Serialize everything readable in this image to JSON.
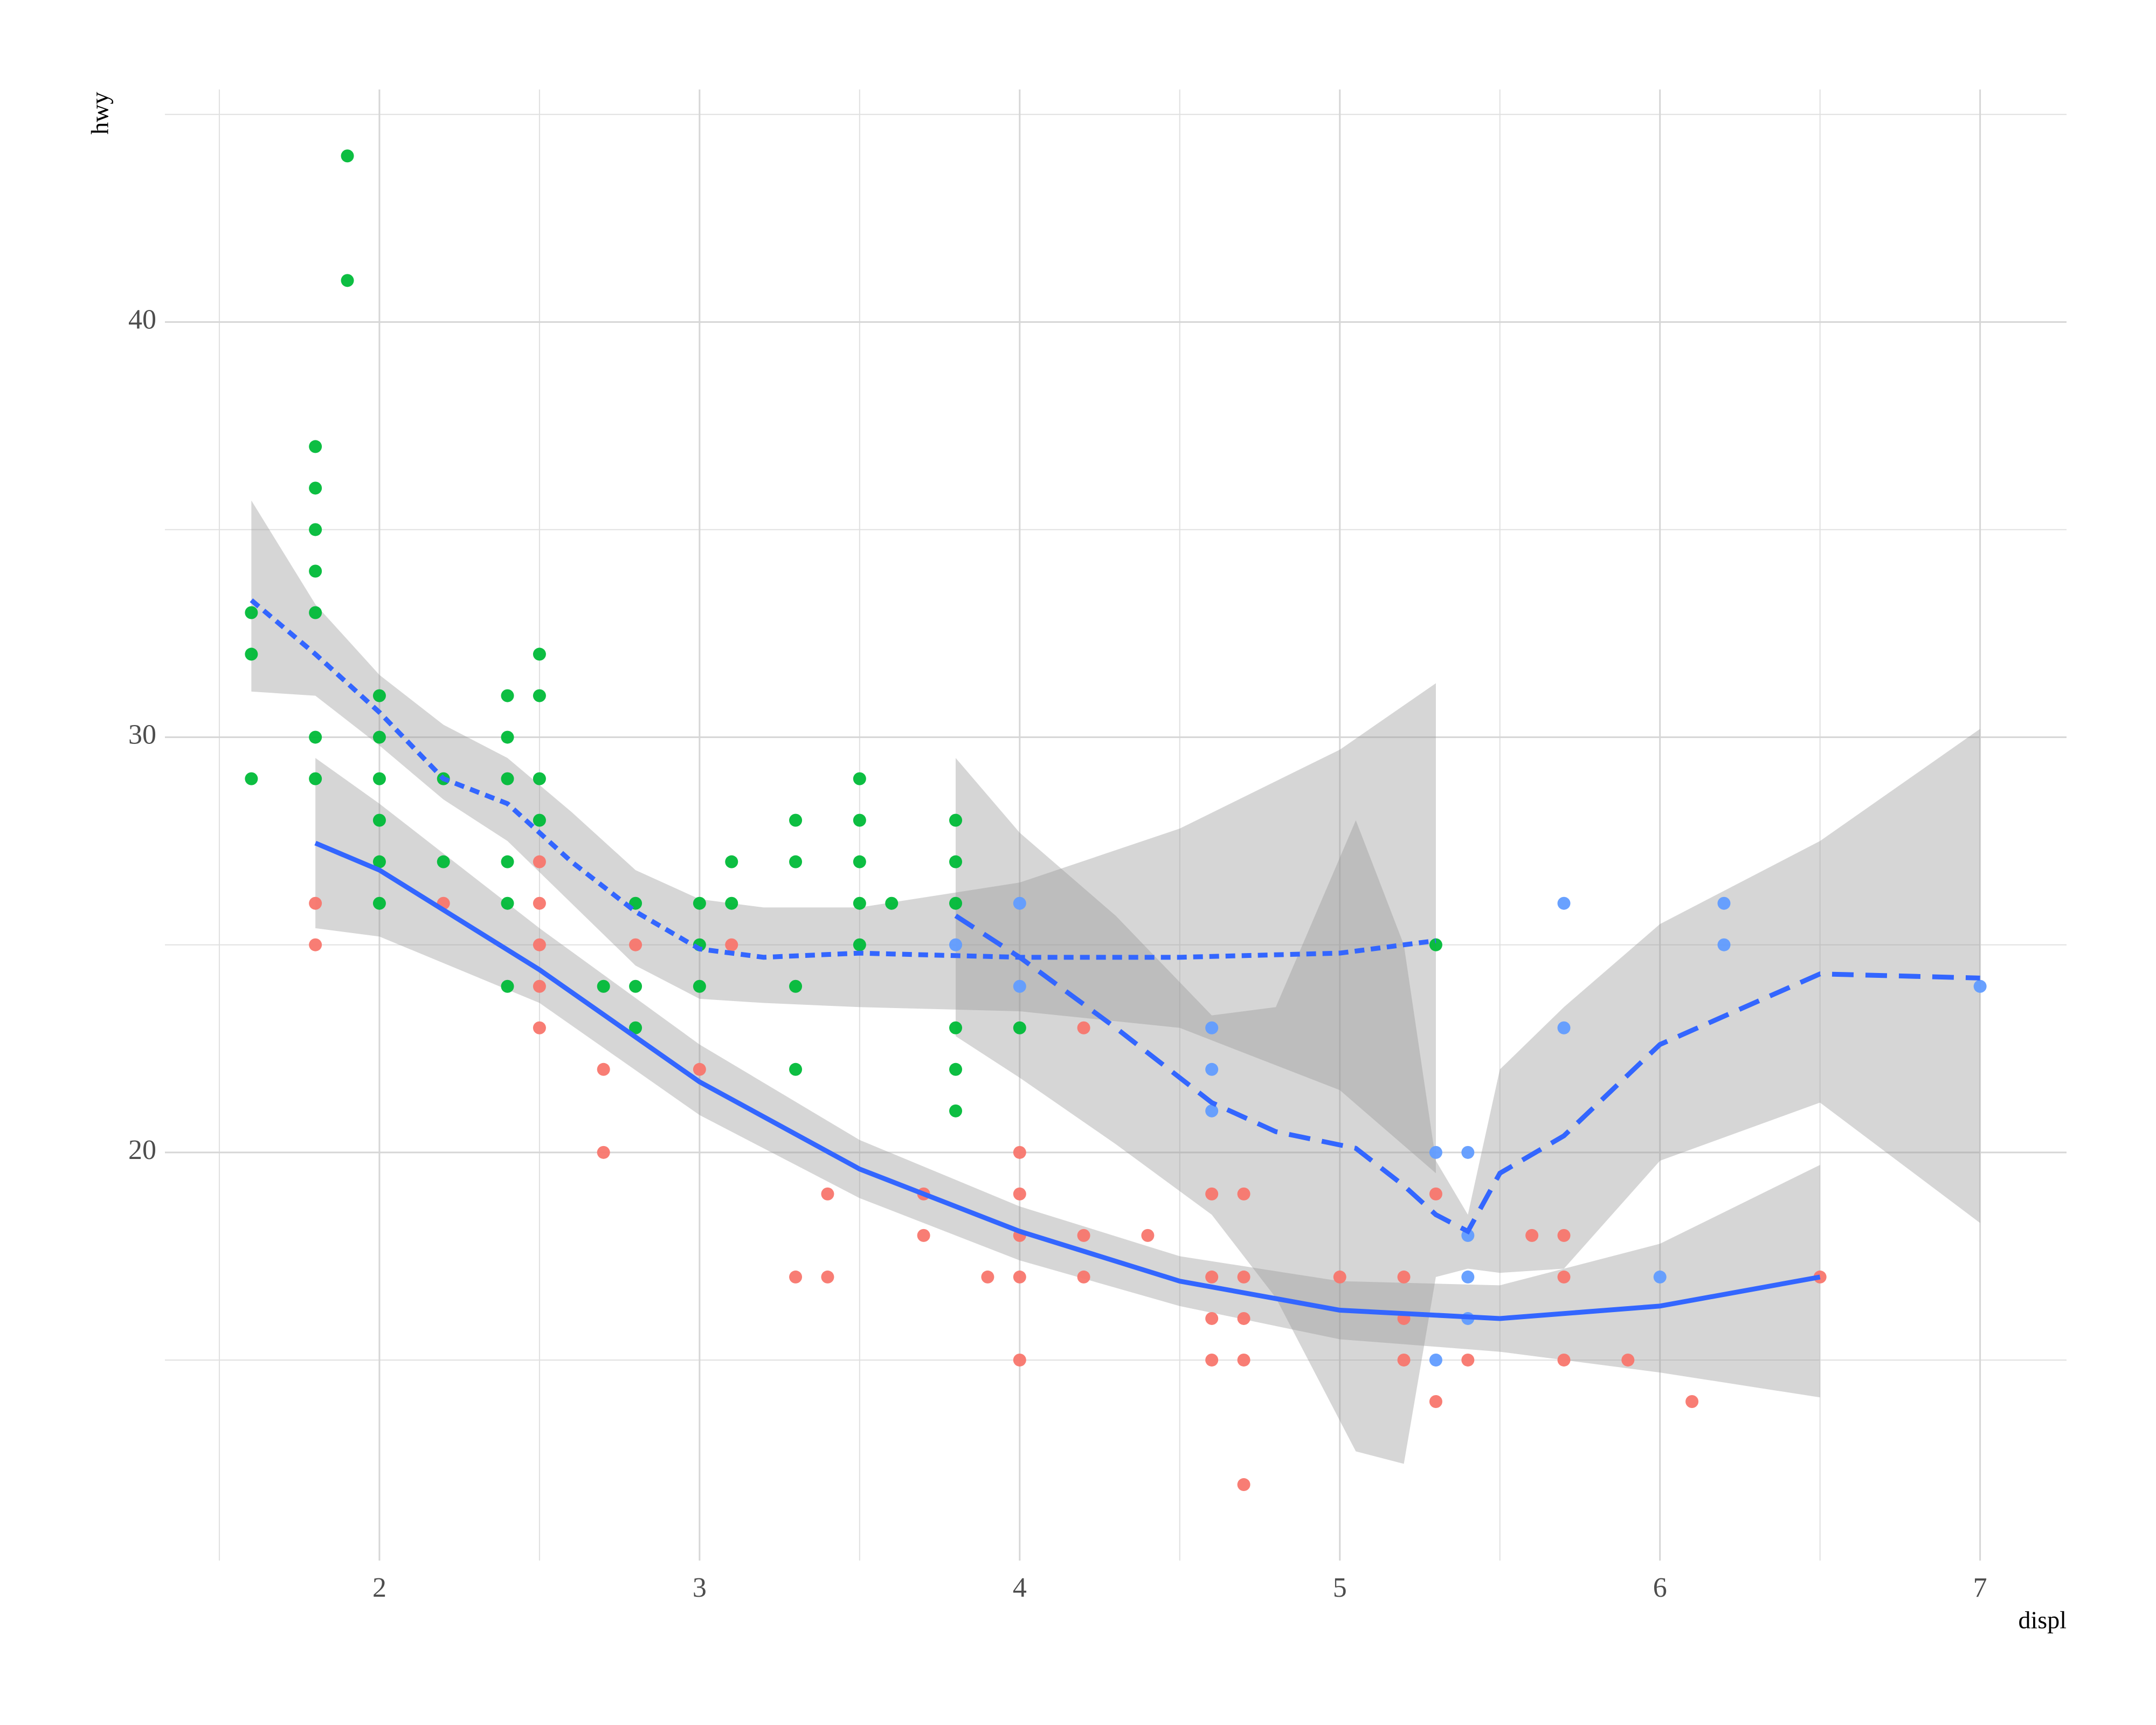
{
  "chart_data": {
    "type": "scatter",
    "x_label": "displ",
    "y_label": "hwy",
    "xlim": [
      1.33,
      7.27
    ],
    "ylim": [
      10.17,
      45.6
    ],
    "xticks": [
      2,
      3,
      4,
      5,
      6,
      7
    ],
    "yticks": [
      20,
      30,
      40
    ],
    "x_minor_grid": [
      1.5,
      2.5,
      3.5,
      4.5,
      5.5,
      6.5
    ],
    "y_minor_grid": [
      15,
      25,
      35,
      45
    ],
    "grid": true,
    "smooth_color": "#3366FF",
    "band_color": "#999999",
    "series": [
      {
        "color": "#F8766D",
        "x": [
          1.8,
          1.8,
          2.2,
          2.5,
          2.5,
          2.5,
          2.5,
          2.5,
          2.7,
          2.7,
          2.8,
          3.0,
          3.1,
          3.3,
          3.4,
          3.4,
          3.7,
          3.7,
          3.9,
          4.0,
          4.0,
          4.0,
          4.0,
          4.0,
          4.2,
          4.2,
          4.2,
          4.4,
          4.6,
          4.6,
          4.6,
          4.6,
          4.7,
          4.7,
          4.7,
          4.7,
          4.7,
          5.0,
          5.2,
          5.2,
          5.2,
          5.3,
          5.3,
          5.4,
          5.6,
          5.7,
          5.7,
          5.7,
          5.9,
          6.1,
          6.5
        ],
        "values": [
          26,
          25,
          26,
          27,
          26,
          25,
          24,
          23,
          22,
          20,
          25,
          22,
          25,
          17,
          19,
          17,
          19,
          18,
          17,
          20,
          19,
          18,
          17,
          15,
          23,
          18,
          17,
          18,
          19,
          17,
          16,
          15,
          19,
          17,
          16,
          15,
          12,
          17,
          17,
          16,
          15,
          19,
          14,
          15,
          18,
          18,
          17,
          15,
          15,
          14,
          17
        ],
        "smooth": {
          "linetype": "solid",
          "x": [
            1.8,
            2.0,
            2.5,
            3.0,
            3.5,
            4.0,
            4.5,
            5.0,
            5.5,
            6.0,
            6.5
          ],
          "values": [
            27.45,
            26.8,
            24.4,
            21.7,
            19.6,
            18.1,
            16.9,
            16.2,
            16.0,
            16.3,
            17.0
          ],
          "lower": [
            25.4,
            25.2,
            23.6,
            20.9,
            18.9,
            17.4,
            16.3,
            15.5,
            15.2,
            14.7,
            14.1
          ],
          "upper": [
            29.5,
            28.4,
            25.4,
            22.6,
            20.3,
            18.7,
            17.5,
            16.9,
            16.8,
            17.8,
            19.7
          ]
        }
      },
      {
        "color": "#00BA38",
        "x": [
          1.6,
          1.6,
          1.6,
          1.8,
          1.8,
          1.8,
          1.8,
          1.8,
          1.8,
          1.8,
          1.9,
          1.9,
          2.0,
          2.0,
          2.0,
          2.0,
          2.0,
          2.0,
          2.2,
          2.2,
          2.4,
          2.4,
          2.4,
          2.4,
          2.4,
          2.4,
          2.5,
          2.5,
          2.5,
          2.5,
          2.7,
          2.8,
          2.8,
          2.8,
          3.0,
          3.0,
          3.0,
          3.1,
          3.1,
          3.3,
          3.3,
          3.3,
          3.3,
          3.5,
          3.5,
          3.5,
          3.5,
          3.5,
          3.6,
          3.8,
          3.8,
          3.8,
          3.8,
          3.8,
          3.8,
          4.0,
          5.3
        ],
        "values": [
          33,
          32,
          29,
          37,
          36,
          35,
          34,
          33,
          30,
          29,
          44,
          41,
          31,
          30,
          29,
          28,
          27,
          26,
          29,
          27,
          31,
          30,
          29,
          27,
          26,
          24,
          32,
          31,
          29,
          28,
          24,
          26,
          24,
          23,
          26,
          25,
          24,
          27,
          26,
          28,
          27,
          24,
          22,
          29,
          28,
          27,
          26,
          25,
          26,
          28,
          27,
          26,
          23,
          22,
          21,
          23,
          25
        ],
        "smooth": {
          "linetype": "dotted",
          "x": [
            1.6,
            1.8,
            2.0,
            2.2,
            2.4,
            2.6,
            2.8,
            3.0,
            3.2,
            3.5,
            4.0,
            4.5,
            5.0,
            5.3
          ],
          "values": [
            33.3,
            32.0,
            30.6,
            29.0,
            28.4,
            27.0,
            25.8,
            24.9,
            24.7,
            24.8,
            24.7,
            24.7,
            24.8,
            25.1
          ],
          "lower": [
            31.1,
            31.0,
            29.8,
            28.5,
            27.5,
            26.0,
            24.5,
            23.7,
            23.6,
            23.5,
            23.4,
            23.0,
            21.5,
            19.5
          ],
          "upper": [
            35.7,
            33.2,
            31.5,
            30.3,
            29.5,
            28.2,
            26.8,
            26.1,
            25.9,
            25.9,
            26.5,
            27.8,
            29.7,
            31.3
          ]
        }
      },
      {
        "color": "#619CFF",
        "x": [
          3.8,
          4.0,
          4.0,
          4.6,
          4.6,
          4.6,
          5.3,
          5.3,
          5.4,
          5.4,
          5.4,
          5.4,
          5.7,
          5.7,
          6.0,
          6.2,
          6.2,
          7.0
        ],
        "values": [
          25,
          26,
          24,
          23,
          22,
          21,
          20,
          15,
          20,
          18,
          17,
          16,
          26,
          23,
          17,
          26,
          25,
          24
        ],
        "smooth": {
          "linetype": "dashed",
          "x": [
            3.8,
            4.0,
            4.3,
            4.6,
            4.8,
            5.05,
            5.2,
            5.3,
            5.4,
            5.5,
            5.7,
            6.0,
            6.5,
            7.0
          ],
          "values": [
            25.7,
            24.7,
            23.0,
            21.2,
            20.5,
            20.1,
            19.2,
            18.5,
            18.1,
            19.5,
            20.4,
            22.6,
            24.3,
            24.2
          ],
          "lower": [
            22.8,
            21.8,
            20.2,
            18.5,
            16.5,
            12.8,
            12.5,
            17.0,
            17.2,
            17.1,
            17.2,
            19.8,
            21.2,
            18.3
          ],
          "upper": [
            29.5,
            27.7,
            25.7,
            23.3,
            23.5,
            28.0,
            25.0,
            19.8,
            18.5,
            22.0,
            23.5,
            25.5,
            27.5,
            30.2
          ]
        }
      }
    ]
  }
}
